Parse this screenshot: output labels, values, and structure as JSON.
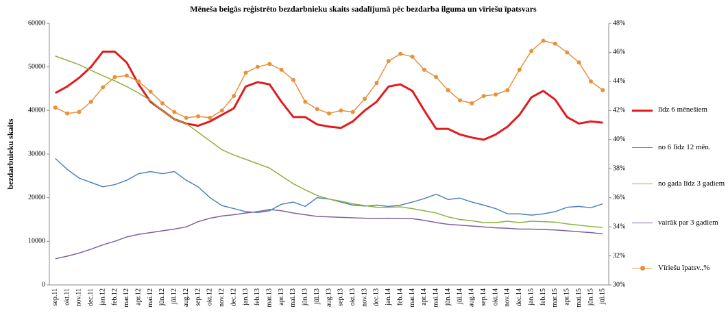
{
  "chart_data": {
    "type": "line",
    "title": "Mēneša beigās reģistrēto bezdarbnieku skaits sadalījumā pēc bezdarba ilguma un vīriešu īpatsvars",
    "y_label": "bezdarbnieku skaits",
    "categories": [
      "sep.11",
      "okt.11",
      "nov.11",
      "dec.11",
      "jan.12",
      "feb.12",
      "mar.12",
      "apr.12",
      "mai.12",
      "jūn.12",
      "jūl.12",
      "aug.12",
      "sep.12",
      "okt.12",
      "nov.12",
      "dec.12",
      "jan.13",
      "feb.13",
      "mar.13",
      "apr.13",
      "mai.13",
      "jūn.13",
      "jūl.13",
      "aug.13",
      "sep.13",
      "okt.13",
      "nov.13",
      "dec.13",
      "jan.14",
      "feb.14",
      "mar.14",
      "apr.14",
      "mai.14",
      "jūn.14",
      "jūl.14",
      "aug.14",
      "sep.14",
      "okt.14",
      "nov.14",
      "dec.14",
      "jan.15",
      "feb.15",
      "mar.15",
      "apr.15",
      "mai.15",
      "jūn.15",
      "jūl.15"
    ],
    "series": [
      {
        "name": "līdz 6 mēnešiem",
        "color": "#e31a1c",
        "width": 3,
        "values": [
          44000,
          45500,
          47500,
          50000,
          53500,
          53500,
          51000,
          46000,
          42000,
          40000,
          38000,
          37000,
          36500,
          37500,
          39000,
          40500,
          45500,
          46500,
          46000,
          42000,
          38500,
          38500,
          36800,
          36300,
          36000,
          37500,
          40000,
          42000,
          45500,
          46000,
          44500,
          40000,
          35800,
          35800,
          34500,
          33800,
          33300,
          34500,
          36300,
          39000,
          43000,
          44500,
          42500,
          38500,
          37000,
          37500,
          37200
        ]
      },
      {
        "name": "no 6 līdz 12 mēn.",
        "color": "#4f81bd",
        "width": 1.5,
        "values": [
          29000,
          26500,
          24500,
          23500,
          22500,
          23000,
          24000,
          25500,
          26000,
          25500,
          26000,
          24000,
          22500,
          20000,
          18200,
          17500,
          16800,
          16600,
          17000,
          18500,
          19000,
          18000,
          20000,
          19700,
          19000,
          18300,
          18100,
          18300,
          18000,
          18300,
          19000,
          19800,
          20800,
          19600,
          19900,
          19000,
          18300,
          17500,
          16300,
          16300,
          16000,
          16300,
          16800,
          17800,
          18000,
          17700,
          18600
        ]
      },
      {
        "name": "no gada līdz 3 gadiem",
        "color": "#8db03f",
        "width": 1.5,
        "values": [
          52500,
          51500,
          50500,
          49200,
          48000,
          46800,
          45500,
          44000,
          42300,
          40000,
          38000,
          37000,
          35000,
          33000,
          31000,
          29800,
          28800,
          27800,
          26800,
          25000,
          23200,
          21800,
          20500,
          19700,
          19200,
          18600,
          18200,
          17800,
          17800,
          17900,
          17500,
          17000,
          16500,
          15600,
          15000,
          14700,
          14300,
          14300,
          14600,
          14300,
          14600,
          14500,
          14400,
          14000,
          13700,
          13400,
          13200
        ]
      },
      {
        "name": "vairāk par 3 gadiem",
        "color": "#7f5f9f",
        "width": 1.5,
        "values": [
          6000,
          6600,
          7300,
          8200,
          9200,
          10000,
          11000,
          11600,
          12000,
          12400,
          12800,
          13300,
          14500,
          15300,
          15800,
          16100,
          16500,
          16800,
          17300,
          17000,
          16500,
          16100,
          15700,
          15600,
          15500,
          15400,
          15300,
          15200,
          15300,
          15200,
          15200,
          14800,
          14300,
          13900,
          13700,
          13500,
          13300,
          13100,
          13000,
          12800,
          12800,
          12700,
          12600,
          12400,
          12200,
          12000,
          11700
        ]
      },
      {
        "name": "Vīriešu īpatsv.,%",
        "color": "#e8913a",
        "width": 1.5,
        "axis": "y2",
        "marker": true,
        "values": [
          42.2,
          41.8,
          41.9,
          42.6,
          43.6,
          44.3,
          44.4,
          44.0,
          43.3,
          42.5,
          41.9,
          41.5,
          41.6,
          41.5,
          42.0,
          43.0,
          44.6,
          45.0,
          45.2,
          44.8,
          44.1,
          42.6,
          42.1,
          41.8,
          42.0,
          41.9,
          42.8,
          43.9,
          45.4,
          45.9,
          45.7,
          44.8,
          44.3,
          43.4,
          42.7,
          42.5,
          43.0,
          43.1,
          43.4,
          44.8,
          46.1,
          46.8,
          46.6,
          46.0,
          45.3,
          44.0,
          43.4
        ]
      }
    ],
    "ylim": [
      0,
      60000
    ],
    "yticks": [
      0,
      10000,
      20000,
      30000,
      40000,
      50000,
      60000
    ],
    "y2lim": [
      30,
      48
    ],
    "y2ticks": [
      {
        "value": 30,
        "label": "30%"
      },
      {
        "value": 32,
        "label": "32%"
      },
      {
        "value": 34,
        "label": "34%"
      },
      {
        "value": 36,
        "label": "36%"
      },
      {
        "value": 38,
        "label": "38%"
      },
      {
        "value": 40,
        "label": "40%"
      },
      {
        "value": 42,
        "label": "42%"
      },
      {
        "value": 44,
        "label": "44%"
      },
      {
        "value": 46,
        "label": "46%"
      },
      {
        "value": 48,
        "label": "48%"
      }
    ],
    "legend": "right"
  }
}
